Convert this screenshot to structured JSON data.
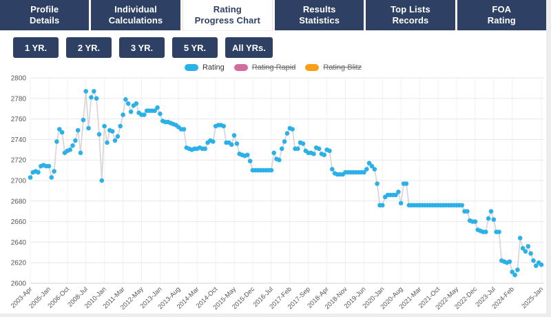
{
  "app": {
    "accent_navy": "#2e4164",
    "page_bg": "#ededed",
    "panel_bg": "#ffffff"
  },
  "tabs": [
    {
      "id": "profile-details",
      "line1": "Profile",
      "line2": "Details",
      "active": false
    },
    {
      "id": "individual-calculations",
      "line1": "Individual",
      "line2": "Calculations",
      "active": false
    },
    {
      "id": "rating-progress-chart",
      "line1": "Rating",
      "line2": "Progress Chart",
      "active": true
    },
    {
      "id": "results-statistics",
      "line1": "Results",
      "line2": "Statistics",
      "active": false
    },
    {
      "id": "top-lists-records",
      "line1": "Top Lists",
      "line2": "Records",
      "active": false
    },
    {
      "id": "foa-rating",
      "line1": "FOA",
      "line2": "Rating",
      "active": false
    }
  ],
  "range_buttons": [
    {
      "id": "1yr",
      "label": "1 YR."
    },
    {
      "id": "2yr",
      "label": "2 YR."
    },
    {
      "id": "3yr",
      "label": "3 YR."
    },
    {
      "id": "5yr",
      "label": "5 YR."
    },
    {
      "id": "all",
      "label": "All YRs."
    }
  ],
  "chart_data": {
    "type": "line",
    "title": "",
    "xlabel": "",
    "ylabel": "",
    "ylim": [
      2600,
      2800
    ],
    "y_ticks": [
      2800,
      2780,
      2760,
      2740,
      2720,
      2700,
      2680,
      2660,
      2640,
      2620,
      2600
    ],
    "grid": true,
    "legend_position": "top-center",
    "connector_line_color": "#d8d8d8",
    "grid_color": "#e7e7e7",
    "vgrid_color": "#f1f1f1",
    "axis_line_color": "#d0d0d0",
    "x_point_count": 194,
    "x_tick_labels": [
      "2003-Apr",
      "2005-Jan",
      "2006-Oct",
      "2008-Jul",
      "2010-Jan",
      "2011-Mar",
      "2012-May",
      "2013-Jan",
      "2013-Aug",
      "2014-Mar",
      "2014-Oct",
      "2015-May",
      "2015-Dec",
      "2016-Jul",
      "2017-Feb",
      "2017-Sep",
      "2018-Apr",
      "2018-Nov",
      "2019-Jun",
      "2020-Jan",
      "2020-Aug",
      "2021-Mar",
      "2021-Oct",
      "2022-May",
      "2022-Dec",
      "2023-Jul",
      "2024-Feb",
      "2025-Jan"
    ],
    "x_tick_positions": [
      0,
      7,
      14,
      21,
      28,
      35,
      42,
      49,
      56,
      63,
      70,
      77,
      84,
      91,
      98,
      105,
      112,
      119,
      126,
      133,
      140,
      147,
      154,
      161,
      168,
      175,
      182,
      193
    ],
    "series": [
      {
        "name": "Rating",
        "color": "#2bb0e8",
        "visible": true,
        "values": [
          2703,
          2708,
          2709,
          2708,
          2714,
          2715,
          2714,
          2714,
          2703,
          2709,
          2738,
          2750,
          2747,
          2727,
          2729,
          2730,
          2734,
          2739,
          2749,
          2727,
          2759,
          2787,
          2751,
          2781,
          2787,
          2780,
          2745,
          2700,
          2753,
          2737,
          2749,
          2748,
          2739,
          2743,
          2753,
          2764,
          2779,
          2775,
          2767,
          2773,
          2775,
          2766,
          2764,
          2764,
          2768,
          2768,
          2768,
          2768,
          2771,
          2765,
          2758,
          2757,
          2757,
          2756,
          2755,
          2754,
          2752,
          2750,
          2750,
          2732,
          2731,
          2730,
          2731,
          2731,
          2732,
          2731,
          2731,
          2737,
          2739,
          2738,
          2753,
          2754,
          2754,
          2753,
          2737,
          2737,
          2735,
          2744,
          2736,
          2726,
          2725,
          2724,
          2725,
          2719,
          2710,
          2710,
          2710,
          2710,
          2710,
          2710,
          2710,
          2710,
          2727,
          2721,
          2720,
          2731,
          2738,
          2746,
          2751,
          2750,
          2731,
          2731,
          2737,
          2736,
          2729,
          2727,
          2727,
          2726,
          2732,
          2731,
          2726,
          2725,
          2730,
          2729,
          2711,
          2707,
          2706,
          2706,
          2706,
          2708,
          2708,
          2708,
          2708,
          2708,
          2708,
          2708,
          2708,
          2711,
          2717,
          2714,
          2711,
          2697,
          2676,
          2676,
          2684,
          2686,
          2686,
          2686,
          2686,
          2689,
          2678,
          2697,
          2697,
          2676,
          2676,
          2676,
          2676,
          2676,
          2676,
          2676,
          2676,
          2676,
          2676,
          2676,
          2676,
          2676,
          2676,
          2676,
          2676,
          2676,
          2676,
          2676,
          2676,
          2676,
          2670,
          2670,
          2661,
          2660,
          2660,
          2652,
          2651,
          2650,
          2650,
          2663,
          2670,
          2662,
          2650,
          2650,
          2622,
          2621,
          2620,
          2621,
          2611,
          2608,
          2613,
          2644,
          2634,
          2631,
          2636,
          2629,
          2622,
          2617,
          2620,
          2618
        ]
      },
      {
        "name": "Rating Rapid",
        "color": "#cf6d9d",
        "visible": false,
        "values": []
      },
      {
        "name": "Rating Blitz",
        "color": "#f99e15",
        "visible": false,
        "values": []
      }
    ]
  }
}
